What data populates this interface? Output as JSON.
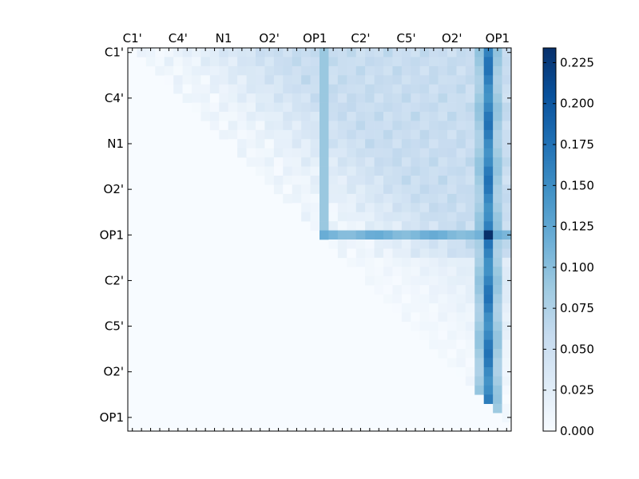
{
  "chart_data": {
    "type": "heatmap",
    "n": 42,
    "matrix_shape": "upper-triangular",
    "top_tick_labels": [
      "C1'",
      "C4'",
      "N1",
      "O2'",
      "OP1",
      "C2'",
      "C5'",
      "O2'",
      "OP1"
    ],
    "left_tick_labels": [
      "C1'",
      "C4'",
      "N1",
      "O2'",
      "OP1",
      "C2'",
      "C5'",
      "O2'",
      "OP1"
    ],
    "label_index": [
      0,
      5,
      10,
      15,
      20,
      25,
      30,
      35,
      40
    ],
    "colorbar": {
      "colormap": "Blues",
      "range": [
        0.0,
        0.234
      ],
      "ticks": [
        0.0,
        0.025,
        0.05,
        0.075,
        0.1,
        0.125,
        0.15,
        0.175,
        0.2,
        0.225
      ],
      "tick_labels": [
        "0.000",
        "0.025",
        "0.050",
        "0.075",
        "0.100",
        "0.125",
        "0.150",
        "0.175",
        "0.200",
        "0.225"
      ]
    },
    "estimated_values": {
      "description": "approximate cell values read from colour; base level for upper triangle, with brighter columns/rows",
      "base_near_diagonal": 0.01,
      "base_far": 0.055,
      "strong_column_index": 39,
      "strong_column_value": 0.16,
      "strong_row_index": 20,
      "strong_row_value": 0.11,
      "peak": {
        "row": 20,
        "col": 39,
        "value": 0.234
      }
    }
  }
}
